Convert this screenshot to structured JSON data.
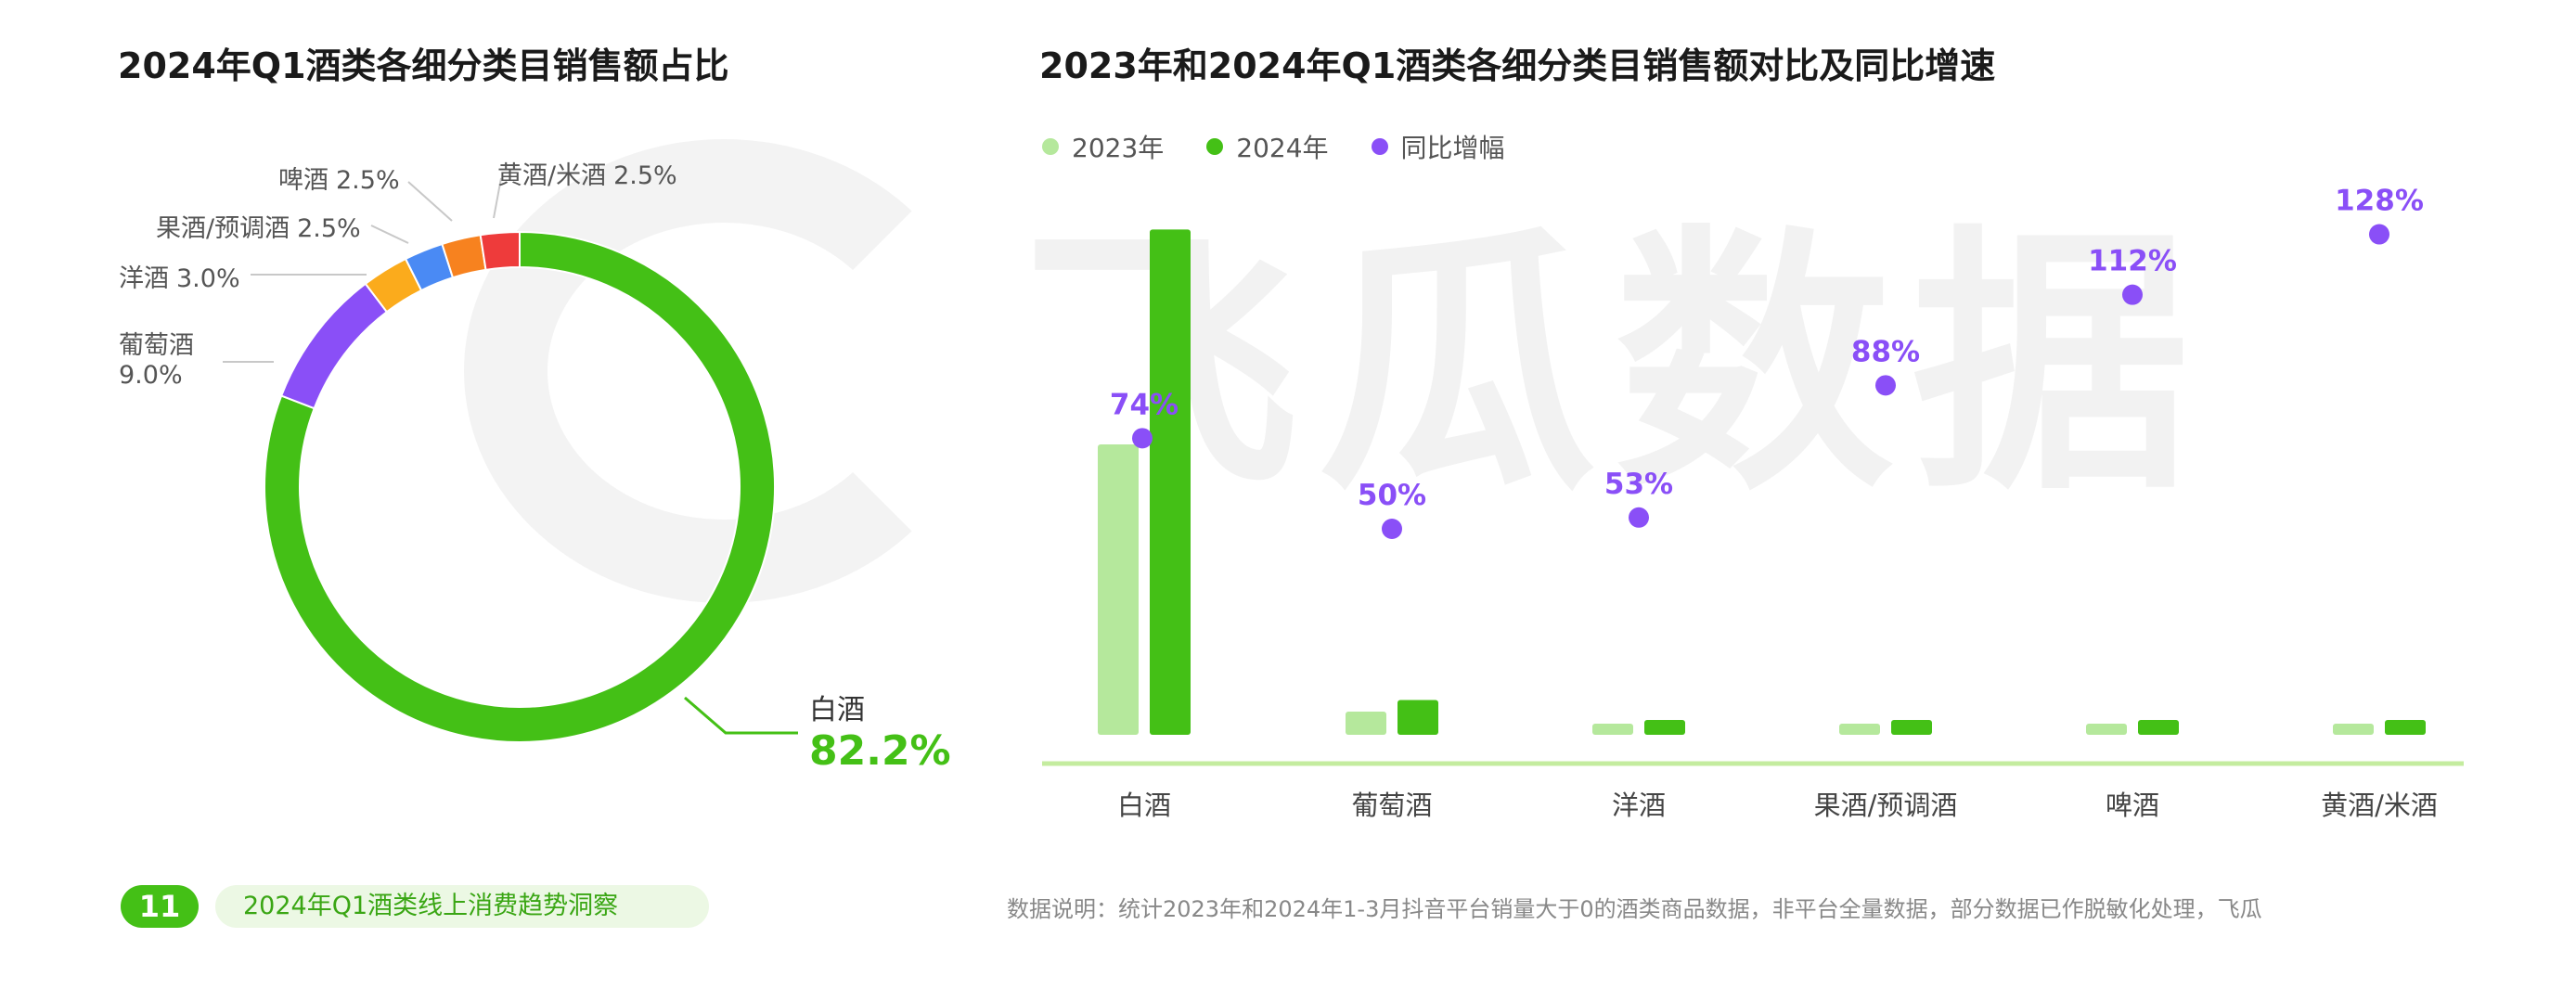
{
  "left_chart": {
    "title": "2024年Q1酒类各细分类目销售额占比"
  },
  "right_chart": {
    "title": "2023年和2024年Q1酒类各细分类目销售额对比及同比增速",
    "legend": [
      "2023年",
      "2024年",
      "同比增幅"
    ]
  },
  "chart_data": [
    {
      "type": "pie",
      "title": "2024年Q1酒类各细分类目销售额占比",
      "categories": [
        "白酒",
        "葡萄酒",
        "洋酒",
        "果酒/预调酒",
        "啤酒",
        "黄酒/米酒"
      ],
      "values": [
        82.2,
        9.0,
        3.0,
        2.5,
        2.5,
        2.5
      ],
      "value_labels": [
        "82.2%",
        "9.0%",
        "3.0%",
        "2.5%",
        "2.5%",
        "2.5%"
      ],
      "colors": [
        "#44c016",
        "#8a4ff7",
        "#fbab1c",
        "#4a8af4",
        "#f7821f",
        "#ee3b3b"
      ]
    },
    {
      "type": "bar",
      "title": "2023年和2024年Q1酒类各细分类目销售额对比及同比增速",
      "categories": [
        "白酒",
        "葡萄酒",
        "洋酒",
        "果酒/预调酒",
        "啤酒",
        "黄酒/米酒"
      ],
      "series": [
        {
          "name": "2023年",
          "values": [
            100,
            8,
            2.5,
            1.5,
            1.5,
            1.5
          ],
          "color": "#b5e89c"
        },
        {
          "name": "2024年",
          "values": [
            174,
            12,
            3.8,
            2.8,
            3.2,
            3.4
          ],
          "color": "#44c016"
        },
        {
          "name": "同比增幅",
          "values": [
            74,
            50,
            53,
            88,
            112,
            128
          ],
          "labels": [
            "74%",
            "50%",
            "53%",
            "88%",
            "112%",
            "128%"
          ],
          "color": "#8a4ff7"
        }
      ],
      "note": "bar values are approximate indexed sales (2023 白酒 = 100)"
    }
  ],
  "watermark": "飞瓜数据",
  "footer": {
    "page_number": "11",
    "report_title": "2024年Q1酒类线上消费趋势洞察",
    "note": "数据说明：统计2023年和2024年1-3月抖音平台销量大于0的酒类商品数据，非平台全量数据，部分数据已作脱敏化处理，飞瓜"
  }
}
